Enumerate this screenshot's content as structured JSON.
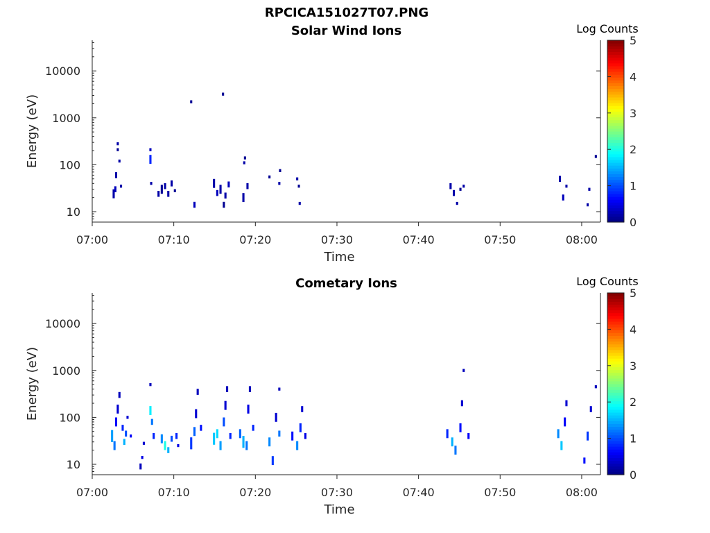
{
  "figure": {
    "title": "RPCICA151027T07.PNG"
  },
  "colormap": [
    "#00007f",
    "#0000ff",
    "#007fff",
    "#00ffff",
    "#7fff7f",
    "#ffff00",
    "#ff7f00",
    "#ff0000",
    "#7f0000"
  ],
  "chart_data": [
    {
      "type": "heatmap",
      "title": "Solar Wind Ions",
      "xlabel": "Time",
      "ylabel": "Energy (eV)",
      "x_ticks": [
        "07:00",
        "07:10",
        "07:20",
        "07:30",
        "07:40",
        "07:50",
        "08:00"
      ],
      "x_tick_minutes": [
        0,
        10,
        20,
        30,
        40,
        50,
        60
      ],
      "x_range_minutes": [
        0,
        62.3
      ],
      "y_ticks": [
        10,
        100,
        1000,
        10000
      ],
      "y_range": [
        6,
        45000
      ],
      "y_scale": "log",
      "colorbar": {
        "label": "Log Counts",
        "ticks": [
          0,
          1,
          2,
          3,
          4,
          5
        ],
        "range": [
          0,
          5
        ]
      },
      "cells": [
        [
          2.5,
          24,
          3,
          0.2
        ],
        [
          2.7,
          30,
          2,
          0.3
        ],
        [
          2.8,
          60,
          2,
          0.2
        ],
        [
          3.0,
          280,
          1,
          0.2
        ],
        [
          3.0,
          210,
          1,
          0.1
        ],
        [
          3.2,
          120,
          1,
          0.2
        ],
        [
          3.4,
          35,
          1,
          0.2
        ],
        [
          7.0,
          130,
          3,
          0.8
        ],
        [
          7.0,
          210,
          1,
          0.3
        ],
        [
          7.1,
          40,
          1,
          0.2
        ],
        [
          8.0,
          24,
          2,
          0.2
        ],
        [
          8.4,
          30,
          3,
          0.1
        ],
        [
          8.8,
          35,
          2,
          0.2
        ],
        [
          9.2,
          24,
          2,
          0.2
        ],
        [
          9.6,
          40,
          2,
          0.2
        ],
        [
          10.0,
          28,
          1,
          0.1
        ],
        [
          12.0,
          2200,
          1,
          0.1
        ],
        [
          12.4,
          14,
          2,
          0.3
        ],
        [
          14.8,
          40,
          3,
          0.2
        ],
        [
          15.2,
          25,
          2,
          0.3
        ],
        [
          15.6,
          30,
          3,
          0.2
        ],
        [
          16.0,
          14,
          2,
          0.1
        ],
        [
          16.2,
          22,
          2,
          0.2
        ],
        [
          16.6,
          38,
          2,
          0.3
        ],
        [
          15.9,
          3200,
          1,
          0.1
        ],
        [
          18.4,
          20,
          3,
          0.2
        ],
        [
          18.5,
          110,
          1,
          0.2
        ],
        [
          18.6,
          140,
          1,
          0.1
        ],
        [
          18.9,
          35,
          2,
          0.2
        ],
        [
          21.6,
          55,
          1,
          0.1
        ],
        [
          22.8,
          40,
          1,
          0.2
        ],
        [
          22.9,
          75,
          1,
          0.1
        ],
        [
          25.0,
          50,
          1,
          0.2
        ],
        [
          25.2,
          35,
          1,
          0.1
        ],
        [
          25.3,
          15,
          1,
          0.2
        ],
        [
          43.8,
          35,
          2,
          0.2
        ],
        [
          44.2,
          25,
          2,
          0.2
        ],
        [
          44.6,
          15,
          1,
          0.2
        ],
        [
          45.0,
          30,
          1,
          0.1
        ],
        [
          45.4,
          35,
          1,
          0.2
        ],
        [
          57.2,
          50,
          2,
          0.2
        ],
        [
          57.6,
          20,
          2,
          0.3
        ],
        [
          58.0,
          35,
          1,
          0.2
        ],
        [
          60.6,
          14,
          1,
          0.2
        ],
        [
          60.8,
          30,
          1,
          0.2
        ],
        [
          61.6,
          150,
          1,
          0.1
        ]
      ]
    },
    {
      "type": "heatmap",
      "title": "Cometary Ions",
      "xlabel": "Time",
      "ylabel": "Energy (eV)",
      "x_ticks": [
        "07:00",
        "07:10",
        "07:20",
        "07:30",
        "07:40",
        "07:50",
        "08:00"
      ],
      "x_tick_minutes": [
        0,
        10,
        20,
        30,
        40,
        50,
        60
      ],
      "x_range_minutes": [
        0,
        62.3
      ],
      "y_ticks": [
        10,
        100,
        1000,
        10000
      ],
      "y_range": [
        6,
        45000
      ],
      "y_scale": "log",
      "colorbar": {
        "label": "Log Counts",
        "ticks": [
          0,
          1,
          2,
          3,
          4,
          5
        ],
        "range": [
          0,
          5
        ]
      },
      "cells": [
        [
          2.3,
          40,
          4,
          1.4
        ],
        [
          2.6,
          25,
          3,
          1.2
        ],
        [
          2.8,
          80,
          3,
          0.6
        ],
        [
          3.0,
          150,
          3,
          0.4
        ],
        [
          3.2,
          300,
          2,
          0.3
        ],
        [
          3.6,
          60,
          2,
          0.8
        ],
        [
          3.8,
          30,
          2,
          1.5
        ],
        [
          4.0,
          45,
          2,
          1.0
        ],
        [
          4.2,
          100,
          1,
          0.4
        ],
        [
          4.6,
          40,
          1,
          0.6
        ],
        [
          5.8,
          9,
          2,
          0.3
        ],
        [
          6.0,
          14,
          1,
          0.5
        ],
        [
          6.2,
          28,
          1,
          0.4
        ],
        [
          7.0,
          140,
          3,
          1.8
        ],
        [
          7.2,
          80,
          2,
          1.2
        ],
        [
          7.4,
          40,
          2,
          0.8
        ],
        [
          7.0,
          500,
          1,
          0.3
        ],
        [
          8.4,
          35,
          3,
          1.3
        ],
        [
          8.8,
          25,
          3,
          2.0
        ],
        [
          9.2,
          20,
          2,
          1.5
        ],
        [
          9.6,
          35,
          2,
          1.0
        ],
        [
          10.2,
          40,
          2,
          0.8
        ],
        [
          10.4,
          25,
          1,
          0.5
        ],
        [
          12.0,
          28,
          4,
          0.9
        ],
        [
          12.4,
          50,
          3,
          1.1
        ],
        [
          12.6,
          120,
          3,
          0.4
        ],
        [
          12.8,
          350,
          2,
          0.3
        ],
        [
          13.2,
          60,
          2,
          0.7
        ],
        [
          14.8,
          35,
          4,
          1.6
        ],
        [
          15.2,
          45,
          3,
          1.7
        ],
        [
          15.6,
          25,
          3,
          1.4
        ],
        [
          16.0,
          80,
          3,
          1.0
        ],
        [
          16.2,
          180,
          3,
          0.4
        ],
        [
          16.4,
          400,
          2,
          0.3
        ],
        [
          16.8,
          40,
          2,
          0.8
        ],
        [
          18.0,
          45,
          3,
          1.1
        ],
        [
          18.4,
          30,
          4,
          1.5
        ],
        [
          18.8,
          25,
          3,
          1.2
        ],
        [
          19.0,
          150,
          3,
          0.5
        ],
        [
          19.2,
          400,
          2,
          0.3
        ],
        [
          19.6,
          60,
          2,
          0.8
        ],
        [
          21.6,
          30,
          3,
          1.3
        ],
        [
          22.0,
          12,
          3,
          0.9
        ],
        [
          22.4,
          100,
          3,
          0.4
        ],
        [
          22.8,
          45,
          2,
          1.2
        ],
        [
          22.8,
          400,
          1,
          0.3
        ],
        [
          24.4,
          40,
          3,
          0.7
        ],
        [
          25.0,
          25,
          3,
          1.3
        ],
        [
          25.4,
          60,
          3,
          0.8
        ],
        [
          25.6,
          150,
          2,
          0.4
        ],
        [
          26.0,
          40,
          2,
          0.5
        ],
        [
          43.4,
          45,
          3,
          0.8
        ],
        [
          44.0,
          30,
          3,
          1.5
        ],
        [
          44.4,
          20,
          3,
          1.2
        ],
        [
          45.0,
          60,
          3,
          0.7
        ],
        [
          45.2,
          200,
          2,
          0.4
        ],
        [
          45.4,
          1000,
          1,
          0.3
        ],
        [
          46.0,
          40,
          2,
          0.6
        ],
        [
          57.0,
          45,
          3,
          1.3
        ],
        [
          57.4,
          25,
          3,
          1.6
        ],
        [
          57.8,
          80,
          3,
          0.6
        ],
        [
          58.0,
          200,
          2,
          0.4
        ],
        [
          60.2,
          12,
          2,
          0.7
        ],
        [
          60.6,
          40,
          3,
          0.9
        ],
        [
          61.0,
          150,
          2,
          0.4
        ],
        [
          61.6,
          450,
          1,
          0.3
        ]
      ]
    }
  ]
}
